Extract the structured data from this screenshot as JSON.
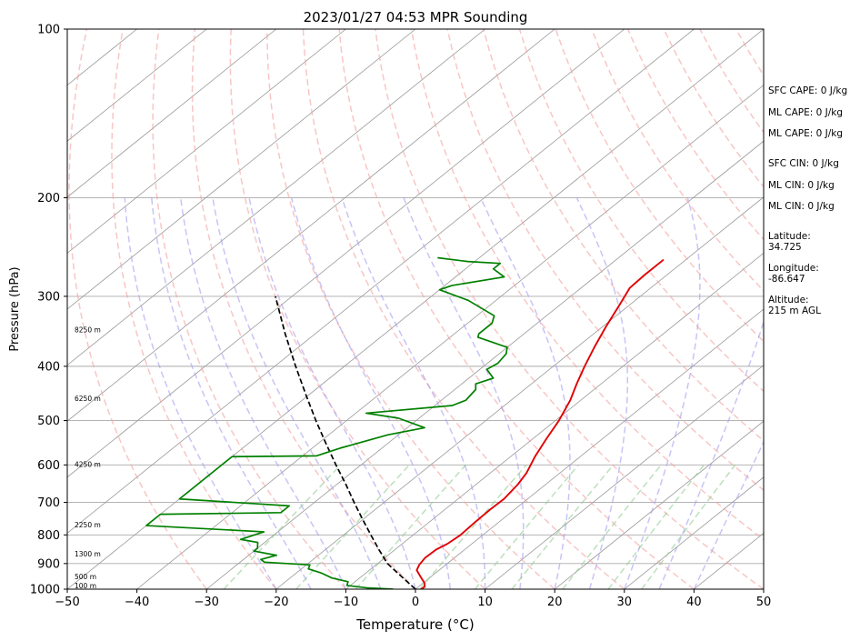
{
  "chart_data": {
    "type": "skew-t",
    "title": "2023/01/27 04:53 MPR Sounding",
    "xlabel": "Temperature (°C)",
    "ylabel": "Pressure (hPa)",
    "xlim": [
      -50,
      50
    ],
    "ylim": [
      1000,
      100
    ],
    "y_scale": "log",
    "x_ticks": [
      "−50",
      "−40",
      "−30",
      "−20",
      "−10",
      "0",
      "10",
      "20",
      "30",
      "40",
      "50"
    ],
    "y_ticks": [
      {
        "p": 100,
        "label": "100"
      },
      {
        "p": 200,
        "label": "200"
      },
      {
        "p": 300,
        "label": "300"
      },
      {
        "p": 400,
        "label": "400"
      },
      {
        "p": 500,
        "label": "500"
      },
      {
        "p": 600,
        "label": "600"
      },
      {
        "p": 700,
        "label": "700"
      },
      {
        "p": 800,
        "label": "800"
      },
      {
        "p": 900,
        "label": "900"
      },
      {
        "p": 1000,
        "label": "1000"
      }
    ],
    "grid": true,
    "colors": {
      "temperature": "#e00000",
      "dewpoint": "#008000",
      "parcel": "#000000",
      "dry_adiabats": "#f4a0a0",
      "moist_adiabats": "#a49cf0",
      "mixing_ratio": "#90cc90",
      "isotherms": "#999999"
    },
    "temperature": [
      {
        "p": 1000,
        "t": 0.8
      },
      {
        "p": 990,
        "t": 0.9
      },
      {
        "p": 975,
        "t": 0.2
      },
      {
        "p": 950,
        "t": -1.5
      },
      {
        "p": 925,
        "t": -3.2
      },
      {
        "p": 905,
        "t": -3.8
      },
      {
        "p": 880,
        "t": -4.2
      },
      {
        "p": 850,
        "t": -4.1
      },
      {
        "p": 830,
        "t": -3.5
      },
      {
        "p": 800,
        "t": -3.2
      },
      {
        "p": 760,
        "t": -3.4
      },
      {
        "p": 720,
        "t": -3.5
      },
      {
        "p": 690,
        "t": -3.4
      },
      {
        "p": 650,
        "t": -4.0
      },
      {
        "p": 620,
        "t": -4.8
      },
      {
        "p": 580,
        "t": -6.5
      },
      {
        "p": 540,
        "t": -8.0
      },
      {
        "p": 500,
        "t": -9.5
      },
      {
        "p": 460,
        "t": -11.5
      },
      {
        "p": 430,
        "t": -13.5
      },
      {
        "p": 400,
        "t": -15.5
      },
      {
        "p": 370,
        "t": -17.5
      },
      {
        "p": 340,
        "t": -19.5
      },
      {
        "p": 310,
        "t": -21.5
      },
      {
        "p": 290,
        "t": -23.0
      },
      {
        "p": 275,
        "t": -23.2
      },
      {
        "p": 258,
        "t": -23.2
      }
    ],
    "dewpoint": [
      {
        "p": 1000,
        "t": -3.2
      },
      {
        "p": 995,
        "t": -7.0
      },
      {
        "p": 985,
        "t": -10.5
      },
      {
        "p": 970,
        "t": -11.0
      },
      {
        "p": 955,
        "t": -14.0
      },
      {
        "p": 935,
        "t": -16.5
      },
      {
        "p": 920,
        "t": -19.0
      },
      {
        "p": 905,
        "t": -19.5
      },
      {
        "p": 895,
        "t": -26.5
      },
      {
        "p": 885,
        "t": -27.5
      },
      {
        "p": 870,
        "t": -26.0
      },
      {
        "p": 855,
        "t": -30.0
      },
      {
        "p": 845,
        "t": -30.0
      },
      {
        "p": 825,
        "t": -31.0
      },
      {
        "p": 815,
        "t": -34.0
      },
      {
        "p": 790,
        "t": -32.0
      },
      {
        "p": 770,
        "t": -50.0
      },
      {
        "p": 735,
        "t": -50.0
      },
      {
        "p": 730,
        "t": -33.0
      },
      {
        "p": 710,
        "t": -33.0
      },
      {
        "p": 690,
        "t": -50.0
      },
      {
        "p": 580,
        "t": -50.0
      },
      {
        "p": 578,
        "t": -38.0
      },
      {
        "p": 560,
        "t": -36.0
      },
      {
        "p": 530,
        "t": -31.5
      },
      {
        "p": 515,
        "t": -27.5
      },
      {
        "p": 495,
        "t": -33.0
      },
      {
        "p": 485,
        "t": -38.5
      },
      {
        "p": 470,
        "t": -27.5
      },
      {
        "p": 460,
        "t": -26.5
      },
      {
        "p": 440,
        "t": -27.0
      },
      {
        "p": 430,
        "t": -28.0
      },
      {
        "p": 420,
        "t": -26.5
      },
      {
        "p": 405,
        "t": -29.0
      },
      {
        "p": 395,
        "t": -28.5
      },
      {
        "p": 380,
        "t": -29.0
      },
      {
        "p": 370,
        "t": -30.0
      },
      {
        "p": 355,
        "t": -36.0
      },
      {
        "p": 350,
        "t": -36.5
      },
      {
        "p": 335,
        "t": -36.5
      },
      {
        "p": 325,
        "t": -37.5
      },
      {
        "p": 305,
        "t": -44.0
      },
      {
        "p": 292,
        "t": -50.0
      },
      {
        "p": 287,
        "t": -49.0
      },
      {
        "p": 277,
        "t": -43.0
      },
      {
        "p": 268,
        "t": -46.0
      },
      {
        "p": 262,
        "t": -46.0
      },
      {
        "p": 260,
        "t": -51.0
      },
      {
        "p": 256,
        "t": -56.0
      }
    ],
    "parcel": [
      {
        "p": 1000,
        "t": 0.0
      },
      {
        "p": 950,
        "t": -4.2
      },
      {
        "p": 900,
        "t": -8.6
      },
      {
        "p": 850,
        "t": -12.3
      },
      {
        "p": 800,
        "t": -16.1
      },
      {
        "p": 750,
        "t": -20.1
      },
      {
        "p": 700,
        "t": -24.3
      },
      {
        "p": 650,
        "t": -28.7
      },
      {
        "p": 600,
        "t": -33.6
      },
      {
        "p": 550,
        "t": -38.8
      },
      {
        "p": 500,
        "t": -44.4
      },
      {
        "p": 450,
        "t": -50.4
      },
      {
        "p": 400,
        "t": -57.0
      },
      {
        "p": 350,
        "t": -64.3
      },
      {
        "p": 300,
        "t": -72.4
      }
    ],
    "height_labels": [
      {
        "p": 345,
        "label": "8250 m"
      },
      {
        "p": 458,
        "label": "6250 m"
      },
      {
        "p": 600,
        "label": "4250 m"
      },
      {
        "p": 770,
        "label": "2250 m"
      },
      {
        "p": 867,
        "label": "1300 m"
      },
      {
        "p": 953,
        "label": "500 m"
      },
      {
        "p": 988,
        "label": "100 m"
      }
    ],
    "side_panel": [
      "SFC CAPE: 0 J/kg",
      "ML CAPE: 0 J/kg",
      "ML CAPE: 0 J/kg",
      "SFC CIN: 0 J/kg",
      "ML CIN: 0 J/kg",
      "ML CIN: 0 J/kg",
      "Latitude:\n34.725",
      "Longitude:\n-86.647",
      "Altitude:\n215 m AGL"
    ]
  }
}
